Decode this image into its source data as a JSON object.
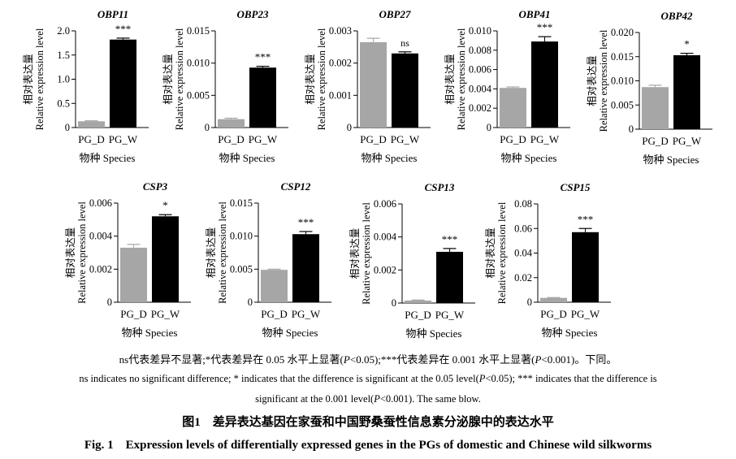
{
  "colors": {
    "PG_D": "#a6a6a6",
    "PG_W": "#000000",
    "axis": "#000000"
  },
  "chart_data": [
    {
      "type": "bar",
      "title": "OBP11",
      "categories": [
        "PG_D",
        "PG_W"
      ],
      "values": [
        0.13,
        1.82
      ],
      "errors": [
        0.01,
        0.03
      ],
      "significance": "***",
      "ylim": [
        0,
        2.0
      ],
      "yticks": [
        "0",
        "0.5",
        "1.0",
        "1.5",
        "2.0"
      ],
      "ylabel_cn": "相对表达量",
      "ylabel": "Relative expression level",
      "xlabel": "物种 Species"
    },
    {
      "type": "bar",
      "title": "OBP23",
      "categories": [
        "PG_D",
        "PG_W"
      ],
      "values": [
        0.0013,
        0.0093
      ],
      "errors": [
        0.00015,
        0.0002
      ],
      "significance": "***",
      "ylim": [
        0,
        0.015
      ],
      "yticks": [
        "0",
        "0.005",
        "0.010",
        "0.015"
      ],
      "ylabel_cn": "相对表达量",
      "ylabel": "Relative expression level",
      "xlabel": "物种 Species"
    },
    {
      "type": "bar",
      "title": "OBP27",
      "categories": [
        "PG_D",
        "PG_W"
      ],
      "values": [
        0.00265,
        0.0023
      ],
      "errors": [
        0.00012,
        5e-05
      ],
      "significance": "ns",
      "ylim": [
        0,
        0.003
      ],
      "yticks": [
        "0",
        "0.001",
        "0.002",
        "0.003"
      ],
      "ylabel_cn": "相对表达量",
      "ylabel": "Relative expression level",
      "xlabel": "物种 Species"
    },
    {
      "type": "bar",
      "title": "OBP41",
      "categories": [
        "PG_D",
        "PG_W"
      ],
      "values": [
        0.0041,
        0.0089
      ],
      "errors": [
        0.0001,
        0.0005
      ],
      "significance": "***",
      "ylim": [
        0,
        0.01
      ],
      "yticks": [
        "0",
        "0.002",
        "0.004",
        "0.006",
        "0.008",
        "0.010"
      ],
      "ylabel_cn": "相对表达量",
      "ylabel": "Relative expression level",
      "xlabel": "物种 Species"
    },
    {
      "type": "bar",
      "title": "OBP42",
      "categories": [
        "PG_D",
        "PG_W"
      ],
      "values": [
        0.0087,
        0.0153
      ],
      "errors": [
        0.0004,
        0.0004
      ],
      "significance": "*",
      "ylim": [
        0,
        0.02
      ],
      "yticks": [
        "0",
        "0.005",
        "0.010",
        "0.015",
        "0.020"
      ],
      "ylabel_cn": "相对表达量",
      "ylabel": "Relative expression level",
      "xlabel": "物种 Species"
    },
    {
      "type": "bar",
      "title": "CSP3",
      "categories": [
        "PG_D",
        "PG_W"
      ],
      "values": [
        0.0033,
        0.0052
      ],
      "errors": [
        0.0002,
        0.0001
      ],
      "significance": "*",
      "ylim": [
        0,
        0.006
      ],
      "yticks": [
        "0",
        "0.002",
        "0.004",
        "0.006"
      ],
      "ylabel_cn": "相对表达量",
      "ylabel": "Relative expression level",
      "xlabel": "物种 Species"
    },
    {
      "type": "bar",
      "title": "CSP12",
      "categories": [
        "PG_D",
        "PG_W"
      ],
      "values": [
        0.0049,
        0.0103
      ],
      "errors": [
        0.0001,
        0.0004
      ],
      "significance": "***",
      "ylim": [
        0,
        0.015
      ],
      "yticks": [
        "0",
        "0.005",
        "0.010",
        "0.015"
      ],
      "ylabel_cn": "相对表达量",
      "ylabel": "Relative expression level",
      "xlabel": "物种 Species"
    },
    {
      "type": "bar",
      "title": "CSP13",
      "categories": [
        "PG_D",
        "PG_W"
      ],
      "values": [
        0.00015,
        0.0031
      ],
      "errors": [
        3e-05,
        0.0002
      ],
      "significance": "***",
      "ylim": [
        0,
        0.006
      ],
      "yticks": [
        "0",
        "0.002",
        "0.004",
        "0.006"
      ],
      "ylabel_cn": "相对表达量",
      "ylabel": "Relative expression level",
      "xlabel": "物种 Species"
    },
    {
      "type": "bar",
      "title": "CSP15",
      "categories": [
        "PG_D",
        "PG_W"
      ],
      "values": [
        0.0035,
        0.057
      ],
      "errors": [
        0.0003,
        0.003
      ],
      "significance": "***",
      "ylim": [
        0,
        0.08
      ],
      "yticks": [
        "0",
        "0.02",
        "0.04",
        "0.06",
        "0.08"
      ],
      "ylabel_cn": "相对表达量",
      "ylabel": "Relative expression level",
      "xlabel": "物种 Species"
    }
  ],
  "caption": {
    "cn_note": {
      "a": "ns代表差异不显著;*代表差异在 0.05 水平上显著(",
      "b": "P",
      "c": "<0.05);***代表差异在 0.001 水平上显著(",
      "d": "P",
      "e": "<0.001)。下同。"
    },
    "en_note_1": {
      "a": "ns indicates no significant difference; * indicates that the difference is significant at the 0.05 level(",
      "b": "P",
      "c": "<0.05); *** indicates that the difference is"
    },
    "en_note_2": {
      "a": "significant at the 0.001 level(",
      "b": "P",
      "c": "<0.001). The same blow."
    },
    "figure_title_cn": "图1　差异表达基因在家蚕和中国野桑蚕性信息素分泌腺中的表达水平",
    "figure_title_en": "Fig. 1　Expression levels of differentially expressed genes in the PGs of domestic and Chinese wild silkworms"
  }
}
